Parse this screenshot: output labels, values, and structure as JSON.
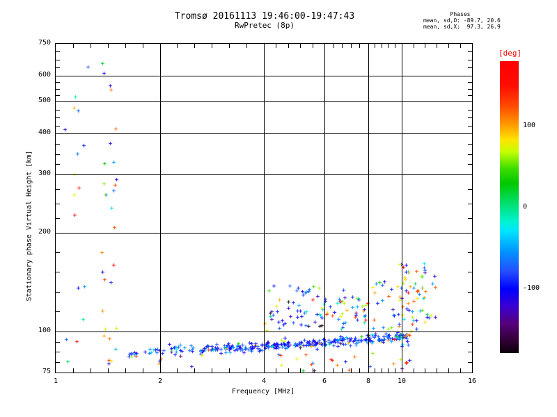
{
  "title": {
    "line1": "Tromsø 20161113 19:46:00-19:47:43",
    "line2": "RwPretec (8p)"
  },
  "stats": {
    "header": "Phases",
    "line_o": "mean, sd,O: -89.7, 20.6",
    "line_x": "mean, sd,X:  97.3, 26.9"
  },
  "chart_data": {
    "type": "scatter",
    "title": "Tromsø 20161113 19:46:00-19:47:43 / RwPretec (8p)",
    "xlabel": "Frequency [MHz]",
    "ylabel": "Stationary phase Virtual Height [km]",
    "grid": true,
    "marker": "plus",
    "x_axis": {
      "scale": "log",
      "min": 1,
      "max": 16,
      "majors": [
        1,
        2,
        4,
        6,
        8,
        10,
        16
      ],
      "minor_subdivisions": [
        6,
        6,
        5,
        5,
        5,
        6
      ]
    },
    "y_axis": {
      "scale": "log",
      "min": 75,
      "max": 750,
      "majors": [
        750,
        600,
        500,
        400,
        300,
        200,
        100,
        75
      ],
      "minor_subdivisions": [
        4,
        4,
        4,
        4,
        4,
        5,
        4
      ]
    },
    "colorbar": {
      "label": "[deg]",
      "label_color": "#ff0000",
      "range": [
        -180,
        180
      ],
      "ticks": [
        100,
        0,
        -100
      ],
      "stops": [
        [
          180,
          "#ff0000"
        ],
        [
          150,
          "#ff0c00"
        ],
        [
          126,
          "#ff4600"
        ],
        [
          101,
          "#ff9c00"
        ],
        [
          83,
          "#ffe400"
        ],
        [
          68,
          "#c4ff00"
        ],
        [
          47,
          "#3cdc00"
        ],
        [
          29,
          "#00c800"
        ],
        [
          0,
          "#00e482"
        ],
        [
          -18,
          "#00f2d2"
        ],
        [
          -29,
          "#00e6ff"
        ],
        [
          -54,
          "#0096ff"
        ],
        [
          -79,
          "#2450ff"
        ],
        [
          -101,
          "#0000ff"
        ],
        [
          -122,
          "#3a00d2"
        ],
        [
          -144,
          "#56007a"
        ],
        [
          -166,
          "#2e0030"
        ],
        [
          -180,
          "#0a000a"
        ]
      ]
    },
    "series_stats": {
      "o_mode_phase": {
        "mean": -89.7,
        "sd": 20.6
      },
      "x_mode_phase": {
        "mean": 97.3,
        "sd": 26.9
      }
    },
    "seed": 20161113,
    "clusters": [
      {
        "name": "es-column-1.4MHz",
        "fRange": [
          1.36,
          1.5
        ],
        "hRange": [
          79,
          660
        ],
        "count": 30,
        "mix": [
          {
            "u": 1,
            "w": 0.38
          },
          {
            "m": 97,
            "s": 27,
            "w": 0.32
          },
          {
            "m": -90,
            "s": 25,
            "w": 0.3
          }
        ]
      },
      {
        "name": "es-column-1.18MHz",
        "fRange": [
          1.12,
          1.24
        ],
        "hRange": [
          82,
          640
        ],
        "count": 14,
        "mix": [
          {
            "u": 1,
            "w": 0.38
          },
          {
            "m": 97,
            "s": 27,
            "w": 0.32
          },
          {
            "m": -90,
            "s": 25,
            "w": 0.3
          }
        ]
      },
      {
        "name": "es-column-1.06MHz",
        "fRange": [
          1.04,
          1.09
        ],
        "hRange": [
          80,
          660
        ],
        "count": 3,
        "mix": [
          {
            "u": 1,
            "w": 1
          }
        ]
      },
      {
        "name": "es-band-onset",
        "fRange": [
          1.62,
          1.82
        ],
        "band": [
          85,
          87
        ],
        "hSd": 1.2,
        "count": 10,
        "mix": [
          {
            "m": -90,
            "s": 18,
            "w": 0.7
          },
          {
            "u": 1,
            "w": 0.3
          }
        ]
      },
      {
        "name": "es-band-low",
        "fRange": [
          1.85,
          2.6
        ],
        "band": [
          87,
          89
        ],
        "hSd": 1.5,
        "count": 30,
        "mix": [
          {
            "m": -90,
            "s": 16,
            "w": 0.8
          },
          {
            "m": -45,
            "s": 15,
            "w": 0.1
          },
          {
            "u": 1,
            "w": 0.1
          }
        ]
      },
      {
        "name": "es-band-main",
        "fRange": [
          2.6,
          6.3
        ],
        "band": [
          88,
          93
        ],
        "hSd": 1.3,
        "count": 200,
        "mix": [
          {
            "m": -90,
            "s": 15,
            "w": 0.8
          },
          {
            "m": -48,
            "s": 14,
            "w": 0.12
          },
          {
            "m": 97,
            "s": 27,
            "w": 0.03
          },
          {
            "u": 1,
            "w": 0.05
          }
        ]
      },
      {
        "name": "es-band-high",
        "fRange": [
          6.3,
          10.4
        ],
        "band": [
          93,
          97
        ],
        "hSd": 1.6,
        "count": 110,
        "mix": [
          {
            "m": -90,
            "s": 17,
            "w": 0.68
          },
          {
            "m": -45,
            "s": 16,
            "w": 0.15
          },
          {
            "m": 97,
            "s": 27,
            "w": 0.07
          },
          {
            "u": 1,
            "w": 0.1
          }
        ]
      },
      {
        "name": "f-cloud-mid",
        "fRange": [
          4.0,
          6.3
        ],
        "hRange": [
          100,
          138
        ],
        "count": 60,
        "mix": [
          {
            "m": -90,
            "s": 25,
            "w": 0.58
          },
          {
            "m": -40,
            "s": 20,
            "w": 0.14
          },
          {
            "m": 97,
            "s": 27,
            "w": 0.18
          },
          {
            "u": 1,
            "w": 0.1
          }
        ]
      },
      {
        "name": "f-cloud-high",
        "fRange": [
          6.3,
          9.7
        ],
        "hRange": [
          100,
          142
        ],
        "count": 55,
        "mix": [
          {
            "m": -90,
            "s": 25,
            "w": 0.45
          },
          {
            "m": 97,
            "s": 27,
            "w": 0.3
          },
          {
            "m": -35,
            "s": 20,
            "w": 0.1
          },
          {
            "u": 1,
            "w": 0.15
          }
        ]
      },
      {
        "name": "x-cluster-right",
        "fRange": [
          9.7,
          12.5
        ],
        "hRange": [
          100,
          162
        ],
        "count": 65,
        "mix": [
          {
            "m": 97,
            "s": 30,
            "w": 0.45
          },
          {
            "m": -90,
            "s": 25,
            "w": 0.25
          },
          {
            "m": -30,
            "s": 25,
            "w": 0.12
          },
          {
            "u": 1,
            "w": 0.18
          }
        ]
      },
      {
        "name": "column-10MHz",
        "fRange": [
          9.9,
          10.6
        ],
        "hRange": [
          77,
          99
        ],
        "count": 14,
        "mix": [
          {
            "u": 1,
            "w": 0.4
          },
          {
            "m": -90,
            "s": 20,
            "w": 0.3
          },
          {
            "m": 97,
            "s": 27,
            "w": 0.3
          }
        ]
      },
      {
        "name": "below-band-sparse",
        "fRange": [
          4.2,
          9.7
        ],
        "hRange": [
          76,
          86
        ],
        "count": 18,
        "mix": [
          {
            "u": 1,
            "w": 0.4
          },
          {
            "m": 97,
            "s": 27,
            "w": 0.3
          },
          {
            "m": -90,
            "s": 20,
            "w": 0.3
          }
        ]
      },
      {
        "name": "below-band-left",
        "fRange": [
          1.9,
          3.2
        ],
        "hRange": [
          78,
          85
        ],
        "count": 6,
        "mix": [
          {
            "u": 1,
            "w": 0.5
          },
          {
            "m": -90,
            "s": 20,
            "w": 0.5
          }
        ]
      }
    ]
  }
}
